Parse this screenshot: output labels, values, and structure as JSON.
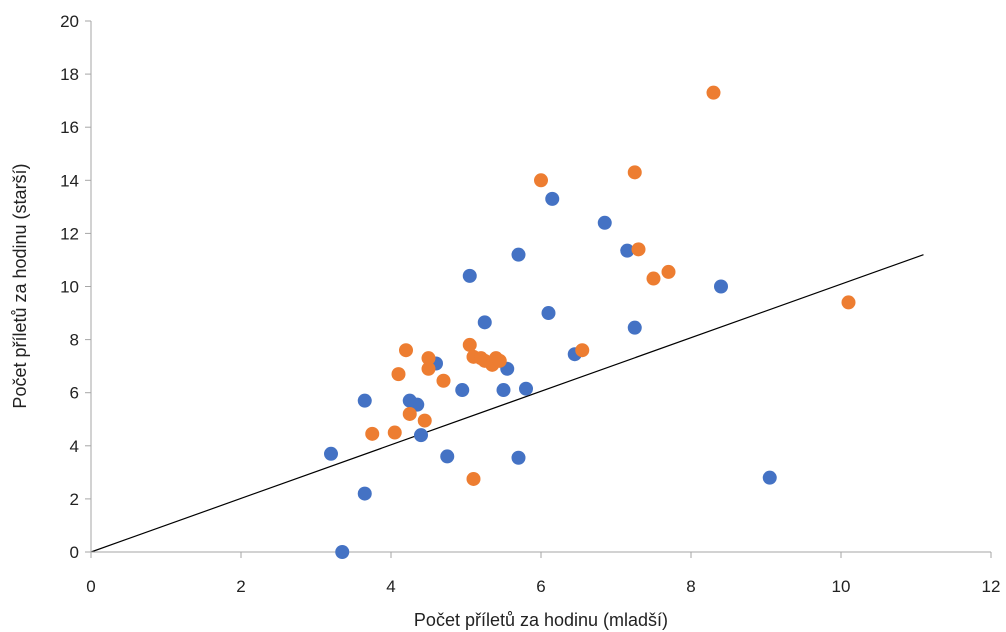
{
  "chart_data": {
    "type": "scatter",
    "title": "",
    "xlabel": "Počet příletů za hodinu (mladší)",
    "ylabel": "Počet příletů za hodinu (starší)",
    "xlim": [
      0,
      12
    ],
    "ylim": [
      0,
      20
    ],
    "xticks": [
      "0",
      "2",
      "4",
      "6",
      "8",
      "10",
      "12"
    ],
    "yticks": [
      "0",
      "2",
      "4",
      "6",
      "8",
      "10",
      "12",
      "14",
      "16",
      "18",
      "20"
    ],
    "grid": false,
    "legend": "none",
    "series": [
      {
        "color": "#4472C4",
        "points": [
          [
            3.2,
            3.7
          ],
          [
            3.65,
            2.2
          ],
          [
            3.65,
            5.7
          ],
          [
            3.35,
            0.0
          ],
          [
            4.25,
            5.7
          ],
          [
            4.35,
            5.55
          ],
          [
            4.4,
            4.4
          ],
          [
            4.6,
            7.1
          ],
          [
            4.75,
            3.6
          ],
          [
            4.95,
            6.1
          ],
          [
            5.05,
            10.4
          ],
          [
            5.25,
            8.65
          ],
          [
            5.5,
            6.1
          ],
          [
            5.55,
            6.9
          ],
          [
            5.7,
            3.55
          ],
          [
            5.7,
            11.2
          ],
          [
            5.8,
            6.15
          ],
          [
            6.1,
            9.0
          ],
          [
            6.15,
            13.3
          ],
          [
            6.45,
            7.45
          ],
          [
            6.85,
            12.4
          ],
          [
            7.15,
            11.35
          ],
          [
            7.25,
            8.45
          ],
          [
            8.4,
            10.0
          ],
          [
            9.05,
            2.8
          ]
        ]
      },
      {
        "color": "#ED7D31",
        "points": [
          [
            3.75,
            4.45
          ],
          [
            4.05,
            4.5
          ],
          [
            4.1,
            6.7
          ],
          [
            4.2,
            7.6
          ],
          [
            4.25,
            5.2
          ],
          [
            4.45,
            4.95
          ],
          [
            4.5,
            6.9
          ],
          [
            4.5,
            7.3
          ],
          [
            4.7,
            6.45
          ],
          [
            5.05,
            7.8
          ],
          [
            5.1,
            7.35
          ],
          [
            5.1,
            2.75
          ],
          [
            5.2,
            7.3
          ],
          [
            5.25,
            7.2
          ],
          [
            5.35,
            7.05
          ],
          [
            5.4,
            7.3
          ],
          [
            5.45,
            7.2
          ],
          [
            6.0,
            14.0
          ],
          [
            6.55,
            7.6
          ],
          [
            7.25,
            14.3
          ],
          [
            7.3,
            11.4
          ],
          [
            7.5,
            10.3
          ],
          [
            7.7,
            10.55
          ],
          [
            8.3,
            17.3
          ],
          [
            10.1,
            9.4
          ]
        ]
      }
    ],
    "reference_line": {
      "color": "#000000",
      "from": [
        0,
        0
      ],
      "to": [
        11.1,
        11.2
      ]
    }
  }
}
